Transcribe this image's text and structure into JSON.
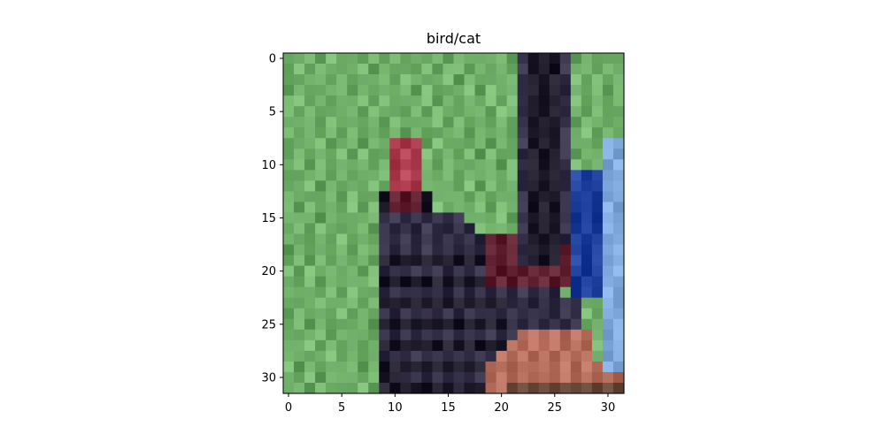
{
  "title": "bird/cat",
  "image": {
    "grid_size": 32,
    "description_label": "pixelated low-resolution photo",
    "colors": {
      "grass": "#7fbf78",
      "grass_dark": "#6fae6a",
      "bird_dark": "#2a2635",
      "bird_mid": "#3e3a52",
      "red_accent": "#b8485a",
      "maroon": "#6a2a3a",
      "blue_fabric": "#2a4aa8",
      "light_blue": "#8ab4e8",
      "skin": "#c07866",
      "brown": "#7a5a4a"
    }
  },
  "axes": {
    "x_ticks": [
      "0",
      "5",
      "10",
      "15",
      "20",
      "25",
      "30"
    ],
    "y_ticks": [
      "0",
      "5",
      "10",
      "15",
      "20",
      "25",
      "30"
    ]
  }
}
